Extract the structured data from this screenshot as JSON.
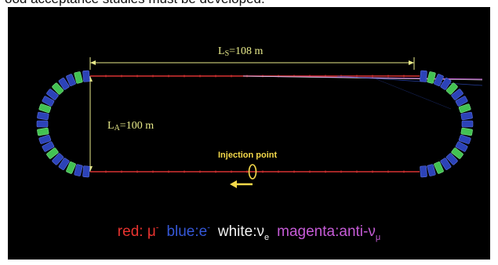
{
  "caption": "ood acceptance studies must be developed.",
  "ls_label": {
    "main": "L",
    "sub": "S",
    "rest": "=108 m"
  },
  "la_label": {
    "main": "L",
    "sub": "A",
    "rest": "=100 m"
  },
  "injection_label": "Injection point",
  "legend": [
    {
      "name": "red",
      "text": "red: μ",
      "sup": "-",
      "sub": "",
      "color": "#e8332f"
    },
    {
      "name": "blue",
      "text": "blue:e",
      "sup": "-",
      "sub": "",
      "color": "#3557d6"
    },
    {
      "name": "white",
      "text": "white:ν",
      "sup": "",
      "sub": "e",
      "color": "#f2f2f2"
    },
    {
      "name": "magenta",
      "text": "magenta:anti-ν",
      "sup": "",
      "sub": "μ",
      "color": "#c55bd6"
    }
  ],
  "colors": {
    "dimension": "#e8ea8a",
    "beam": "#d83333",
    "magnet_blue": "#2c43b8",
    "magnet_green": "#43c252",
    "injection": "#f4d94a"
  }
}
